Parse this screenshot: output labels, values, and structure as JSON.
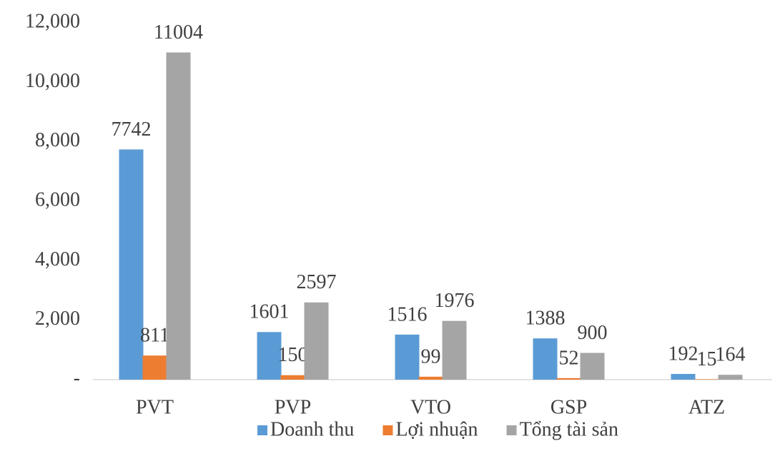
{
  "chart_data": {
    "type": "bar",
    "categories": [
      "PVT",
      "PVP",
      "VTO",
      "GSP",
      "ATZ"
    ],
    "series": [
      {
        "name": "Doanh thu",
        "color": "#5b9bd5",
        "values": [
          7742,
          1601,
          1516,
          1388,
          192
        ]
      },
      {
        "name": "Lợi nhuận",
        "color": "#ed7d31",
        "values": [
          811,
          150,
          99,
          52,
          15
        ]
      },
      {
        "name": "Tổng tài sản",
        "color": "#a5a5a5",
        "values": [
          11004,
          2597,
          1976,
          900,
          164
        ]
      }
    ],
    "ylim": [
      0,
      12000
    ],
    "yticks": [
      {
        "value": 0,
        "label": "-"
      },
      {
        "value": 2000,
        "label": "2,000"
      },
      {
        "value": 4000,
        "label": "4,000"
      },
      {
        "value": 6000,
        "label": "6,000"
      },
      {
        "value": 8000,
        "label": "8,000"
      },
      {
        "value": 10000,
        "label": "10,000"
      },
      {
        "value": 12000,
        "label": "12,000"
      }
    ],
    "grid": false,
    "legend": "bottom"
  }
}
